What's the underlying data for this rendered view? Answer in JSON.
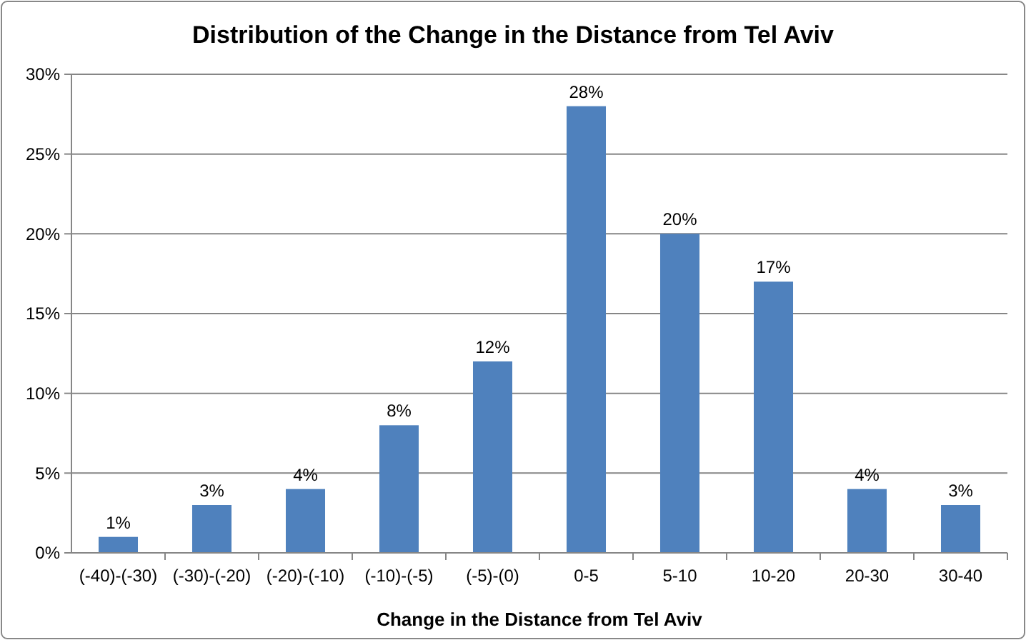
{
  "chart_data": {
    "type": "bar",
    "title": "Distribution of the Change in the Distance from Tel Aviv",
    "xlabel": "Change in the Distance from Tel Aviv",
    "categories": [
      "(-40)-(-30)",
      "(-30)-(-20)",
      "(-20)-(-10)",
      "(-10)-(-5)",
      "(-5)-(0)",
      "0-5",
      "5-10",
      "10-20",
      "20-30",
      "30-40"
    ],
    "values": [
      1,
      3,
      4,
      8,
      12,
      28,
      20,
      17,
      4,
      3
    ],
    "value_labels": [
      "1%",
      "3%",
      "4%",
      "8%",
      "12%",
      "28%",
      "20%",
      "17%",
      "4%",
      "3%"
    ],
    "color": "#4f81bd",
    "ylim": [
      0,
      30
    ],
    "yticks": [
      {
        "value": 0,
        "label": "0%"
      },
      {
        "value": 5,
        "label": "5%"
      },
      {
        "value": 10,
        "label": "10%"
      },
      {
        "value": 15,
        "label": "15%"
      },
      {
        "value": 20,
        "label": "20%"
      },
      {
        "value": 25,
        "label": "25%"
      },
      {
        "value": 30,
        "label": "30%"
      }
    ],
    "grid": "y"
  }
}
